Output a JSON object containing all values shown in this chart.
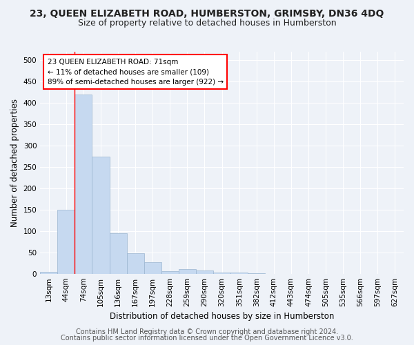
{
  "title": "23, QUEEN ELIZABETH ROAD, HUMBERSTON, GRIMSBY, DN36 4DQ",
  "subtitle": "Size of property relative to detached houses in Humberston",
  "xlabel": "Distribution of detached houses by size in Humberston",
  "ylabel": "Number of detached properties",
  "categories": [
    "13sqm",
    "44sqm",
    "74sqm",
    "105sqm",
    "136sqm",
    "167sqm",
    "197sqm",
    "228sqm",
    "259sqm",
    "290sqm",
    "320sqm",
    "351sqm",
    "382sqm",
    "412sqm",
    "443sqm",
    "474sqm",
    "505sqm",
    "535sqm",
    "566sqm",
    "597sqm",
    "627sqm"
  ],
  "values": [
    5,
    150,
    420,
    275,
    95,
    48,
    27,
    6,
    10,
    8,
    3,
    2,
    1,
    0,
    0,
    0,
    0,
    0,
    0,
    0,
    0
  ],
  "bar_color": "#c6d9f0",
  "bar_edge_color": "#9ab5d0",
  "annotation_text": "23 QUEEN ELIZABETH ROAD: 71sqm\n← 11% of detached houses are smaller (109)\n89% of semi-detached houses are larger (922) →",
  "ylim": [
    0,
    520
  ],
  "yticks": [
    0,
    50,
    100,
    150,
    200,
    250,
    300,
    350,
    400,
    450,
    500
  ],
  "footer1": "Contains HM Land Registry data © Crown copyright and database right 2024.",
  "footer2": "Contains public sector information licensed under the Open Government Licence v3.0.",
  "title_fontsize": 10,
  "subtitle_fontsize": 9,
  "axis_label_fontsize": 8.5,
  "tick_fontsize": 7.5,
  "annotation_fontsize": 7.5,
  "footer_fontsize": 7,
  "background_color": "#eef2f8",
  "plot_bg_color": "#eef2f8"
}
